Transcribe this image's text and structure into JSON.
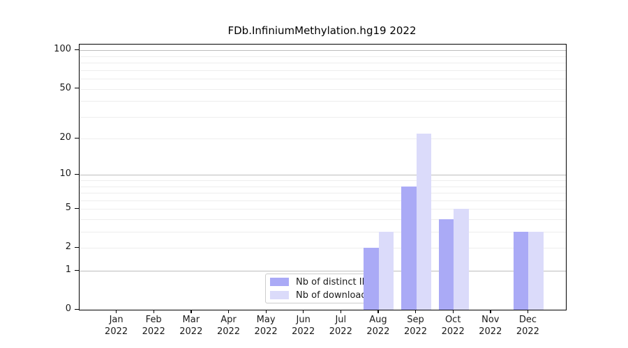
{
  "chart_data": {
    "type": "bar",
    "title": "FDb.InfiniumMethylation.hg19 2022",
    "x_months": [
      "Jan",
      "Feb",
      "Mar",
      "Apr",
      "May",
      "Jun",
      "Jul",
      "Aug",
      "Sep",
      "Oct",
      "Nov",
      "Dec"
    ],
    "x_year": "2022",
    "series": [
      {
        "name": "Nb of distinct IPs",
        "color": "#aaaaf6",
        "values": [
          0,
          0,
          0,
          0,
          0,
          0,
          0,
          2,
          8,
          4,
          0,
          3
        ]
      },
      {
        "name": "Nb of downloads",
        "color": "#dbdbfa",
        "values": [
          0,
          0,
          0,
          0,
          0,
          0,
          0,
          3,
          22,
          5,
          0,
          3
        ]
      }
    ],
    "y_scale": "log1p",
    "y_ticks": [
      0,
      1,
      2,
      5,
      10,
      20,
      50,
      100
    ],
    "ylim": [
      0,
      111
    ],
    "grid": "log-decade-minor",
    "legend_position": "bottom-center",
    "colors": {
      "major_gridline": "#bdbdbd",
      "minor_gridline": "#ededed",
      "axis": "#000000"
    }
  }
}
